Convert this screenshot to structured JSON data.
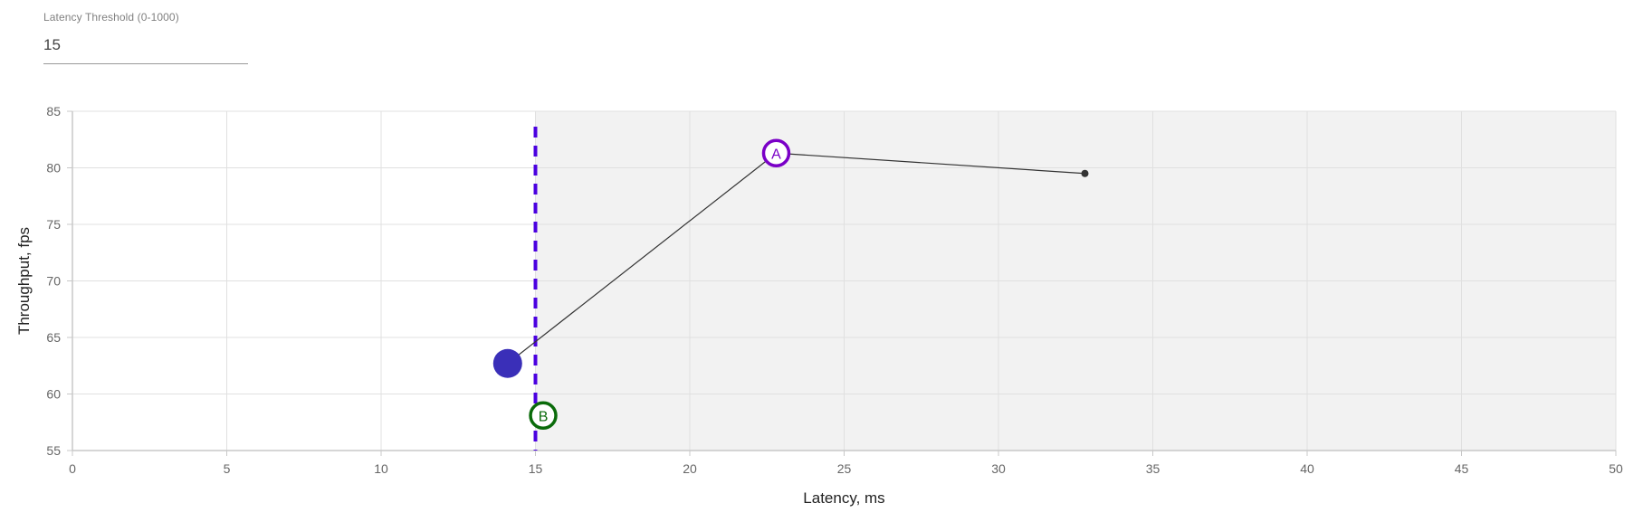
{
  "threshold_control": {
    "label": "Latency Threshold (0-1000)",
    "value": "15"
  },
  "chart_data": {
    "type": "line",
    "xlabel": "Latency, ms",
    "ylabel": "Throughput, fps",
    "xlim": [
      0,
      50
    ],
    "ylim": [
      55,
      85
    ],
    "x_ticks": [
      0,
      5,
      10,
      15,
      20,
      25,
      30,
      35,
      40,
      45,
      50
    ],
    "y_ticks": [
      55,
      60,
      65,
      70,
      75,
      80,
      85
    ],
    "grid": true,
    "threshold": {
      "x": 15,
      "shaded_region": "right",
      "color": "#4a00e0"
    },
    "series": [
      {
        "color": "#333333",
        "points": [
          {
            "x": 14.1,
            "y": 62.7
          },
          {
            "x": 22.8,
            "y": 81.3
          },
          {
            "x": 32.8,
            "y": 79.5
          }
        ]
      }
    ],
    "markers": [
      {
        "label": "",
        "x": 14.1,
        "y": 62.7,
        "style": "filled",
        "color": "#3a2fb8"
      },
      {
        "label": "A",
        "x": 22.8,
        "y": 81.3,
        "style": "ring",
        "color": "#7a00c7"
      },
      {
        "label": "B",
        "x": 15.25,
        "y": 58.1,
        "style": "ring",
        "color": "#0a6b0a"
      }
    ]
  }
}
